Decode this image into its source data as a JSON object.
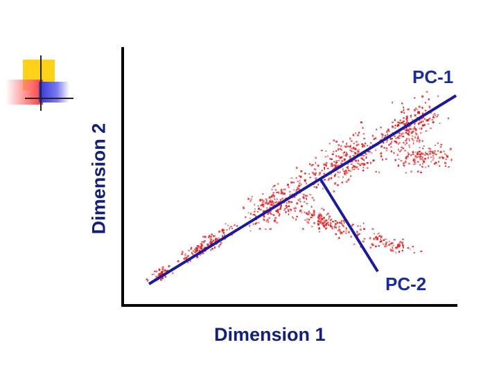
{
  "decoration": {
    "name": "slide-corner-squares",
    "colors": {
      "yellow": "#ffd21a",
      "red": "#ff3b3b",
      "blue": "#3535d8"
    }
  },
  "diagram": {
    "labels": {
      "pc1": "PC-1",
      "pc2": "PC-2",
      "xaxis": "Dimension 1",
      "yaxis": "Dimension 2"
    },
    "colors": {
      "points": "#dd2222",
      "pc_lines": "#1a1a9c",
      "axes": "#000000",
      "labels": "#1a2b9c"
    }
  }
}
